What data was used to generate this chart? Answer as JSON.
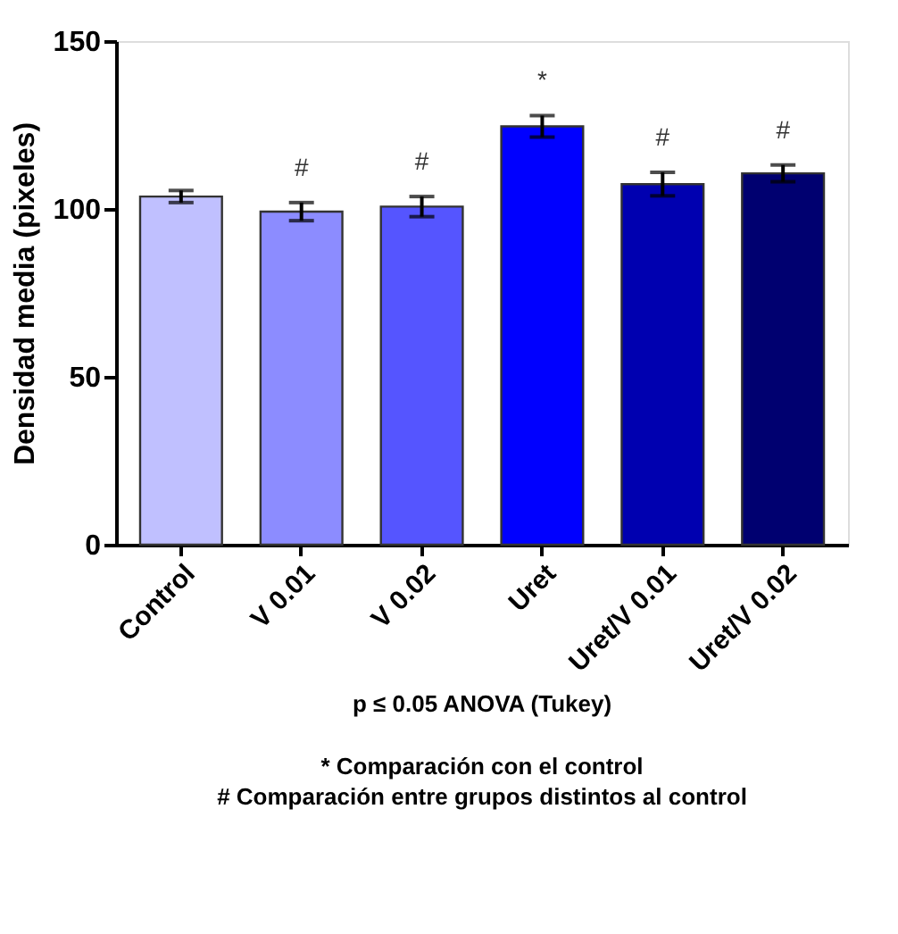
{
  "chart_data": {
    "type": "bar",
    "ylabel": "Densidad media (pixeles)",
    "categories": [
      "Control",
      "V 0.01",
      "V 0.02",
      "Uret",
      "Uret/V 0.01",
      "Uret/V 0.02"
    ],
    "values": [
      103.7,
      99.2,
      100.7,
      124.6,
      107.4,
      110.6
    ],
    "errors": [
      1.8,
      2.7,
      3.0,
      3.2,
      3.5,
      2.5
    ],
    "colors": [
      "#c0c0ff",
      "#8c8cff",
      "#5555ff",
      "#0000ff",
      "#0000b0",
      "#000070"
    ],
    "value_labels": [
      null,
      "#",
      "#",
      "*",
      "#",
      "#"
    ],
    "ylim": [
      0,
      150
    ],
    "yticks": [
      0,
      50,
      100,
      150
    ],
    "grid": false,
    "annotations": [
      "p ≤ 0.05 ANOVA (Tukey)",
      "* Comparación con el control",
      "# Comparación entre grupos distintos al control"
    ]
  }
}
